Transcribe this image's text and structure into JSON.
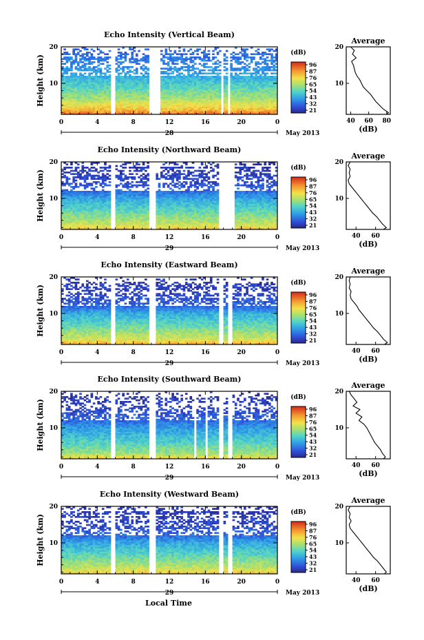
{
  "figure": {
    "xlabel": "Local Time",
    "date_label": "May 2013",
    "unit_label": "(dB)",
    "average_title": "Average",
    "average_xlabel": "(dB)",
    "height_label": "Height (km)"
  },
  "chart_data": [
    {
      "type": "heatmap",
      "title": "Echo Intensity (Vertical Beam)",
      "ylabel": "Height (km)",
      "xlim": [
        0,
        24
      ],
      "ylim": [
        1.5,
        20
      ],
      "x_ticks": [
        "0",
        "4",
        "8",
        "12",
        "16",
        "20",
        "0"
      ],
      "y_ticks": [
        "10",
        "20"
      ],
      "day": "28",
      "colorbar": {
        "ticks": [
          "96",
          "87",
          "76",
          "65",
          "54",
          "43",
          "32",
          "21"
        ],
        "range": [
          21,
          96
        ]
      },
      "gaps_hours": [
        [
          5.5,
          5.9
        ],
        [
          9.8,
          10.9
        ],
        [
          17.7,
          18.0
        ],
        [
          18.5,
          18.8
        ]
      ],
      "profile_by_height": [
        [
          1.5,
          88
        ],
        [
          3,
          76
        ],
        [
          6,
          62
        ],
        [
          10,
          50
        ],
        [
          14,
          40
        ],
        [
          17,
          36
        ],
        [
          20,
          32
        ]
      ],
      "average": {
        "xlim": [
          35,
          84
        ],
        "x_ticks": [
          "40",
          "60",
          "80"
        ],
        "y_ticks": [
          "10",
          "20"
        ],
        "profile": [
          [
            20,
            40
          ],
          [
            19,
            44
          ],
          [
            18,
            42
          ],
          [
            17,
            46
          ],
          [
            16,
            41
          ],
          [
            15,
            43
          ],
          [
            14,
            44
          ],
          [
            13,
            45
          ],
          [
            12,
            47
          ],
          [
            11,
            50
          ],
          [
            10,
            52
          ],
          [
            9,
            54
          ],
          [
            8,
            58
          ],
          [
            7,
            62
          ],
          [
            6,
            65
          ],
          [
            5,
            68
          ],
          [
            4,
            72
          ],
          [
            3,
            76
          ],
          [
            2,
            82
          ],
          [
            1.5,
            80
          ]
        ]
      }
    },
    {
      "type": "heatmap",
      "title": "Echo Intensity (Northward Beam)",
      "ylabel": "Height (km)",
      "xlim": [
        0,
        24
      ],
      "ylim": [
        1.5,
        20
      ],
      "x_ticks": [
        "0",
        "4",
        "8",
        "12",
        "16",
        "20",
        "0"
      ],
      "y_ticks": [
        "10",
        "20"
      ],
      "day": "29",
      "colorbar": {
        "ticks": [
          "96",
          "87",
          "76",
          "65",
          "54",
          "43",
          "32",
          "21"
        ],
        "range": [
          21,
          96
        ]
      },
      "gaps_hours": [
        [
          5.5,
          5.9
        ],
        [
          9.8,
          10.6
        ],
        [
          17.4,
          19.2
        ]
      ],
      "profile_by_height": [
        [
          1.5,
          78
        ],
        [
          3,
          66
        ],
        [
          6,
          56
        ],
        [
          10,
          44
        ],
        [
          12,
          34
        ],
        [
          15,
          28
        ],
        [
          20,
          24
        ]
      ],
      "average": {
        "xlim": [
          30,
          75
        ],
        "x_ticks": [
          "40",
          "60"
        ],
        "y_ticks": [
          "10",
          "20"
        ],
        "profile": [
          [
            20,
            34
          ],
          [
            19,
            32
          ],
          [
            18,
            34
          ],
          [
            17,
            33
          ],
          [
            16,
            34
          ],
          [
            15,
            32
          ],
          [
            14,
            33
          ],
          [
            13,
            36
          ],
          [
            12,
            39
          ],
          [
            11,
            42
          ],
          [
            10,
            45
          ],
          [
            9,
            48
          ],
          [
            8,
            51
          ],
          [
            7,
            54
          ],
          [
            6,
            57
          ],
          [
            5,
            61
          ],
          [
            4,
            64
          ],
          [
            3,
            67
          ],
          [
            2,
            71
          ],
          [
            1.5,
            68
          ]
        ]
      }
    },
    {
      "type": "heatmap",
      "title": "Echo Intensity (Eastward Beam)",
      "ylabel": "Height (km)",
      "xlim": [
        0,
        24
      ],
      "ylim": [
        1.5,
        20
      ],
      "x_ticks": [
        "0",
        "4",
        "8",
        "12",
        "16",
        "20",
        "0"
      ],
      "y_ticks": [
        "10",
        "20"
      ],
      "day": "29",
      "colorbar": {
        "ticks": [
          "96",
          "87",
          "76",
          "65",
          "54",
          "43",
          "32",
          "21"
        ],
        "range": [
          21,
          96
        ]
      },
      "gaps_hours": [
        [
          5.5,
          5.9
        ],
        [
          9.8,
          10.6
        ],
        [
          17.6,
          17.9
        ],
        [
          18.6,
          19.1
        ]
      ],
      "profile_by_height": [
        [
          1.5,
          80
        ],
        [
          3,
          68
        ],
        [
          6,
          57
        ],
        [
          10,
          45
        ],
        [
          12,
          34
        ],
        [
          15,
          28
        ],
        [
          20,
          24
        ]
      ],
      "average": {
        "xlim": [
          30,
          75
        ],
        "x_ticks": [
          "40",
          "60"
        ],
        "y_ticks": [
          "10",
          "20"
        ],
        "profile": [
          [
            20,
            34
          ],
          [
            19,
            33
          ],
          [
            18,
            34
          ],
          [
            17,
            33
          ],
          [
            16,
            35
          ],
          [
            15,
            34
          ],
          [
            14,
            35
          ],
          [
            13,
            38
          ],
          [
            12,
            41
          ],
          [
            11,
            43
          ],
          [
            10,
            46
          ],
          [
            9,
            49
          ],
          [
            8,
            52
          ],
          [
            7,
            55
          ],
          [
            6,
            58
          ],
          [
            5,
            62
          ],
          [
            4,
            65
          ],
          [
            3,
            68
          ],
          [
            2,
            72
          ],
          [
            1.5,
            69
          ]
        ]
      }
    },
    {
      "type": "heatmap",
      "title": "Echo Intensity (Southward Beam)",
      "ylabel": "Height (km)",
      "xlim": [
        0,
        24
      ],
      "ylim": [
        1.5,
        20
      ],
      "x_ticks": [
        "0",
        "4",
        "8",
        "12",
        "16",
        "20",
        "0"
      ],
      "y_ticks": [
        "10",
        "20"
      ],
      "day": "29",
      "colorbar": {
        "ticks": [
          "96",
          "87",
          "76",
          "65",
          "54",
          "43",
          "32",
          "21"
        ],
        "range": [
          21,
          96
        ]
      },
      "gaps_hours": [
        [
          5.5,
          5.9
        ],
        [
          9.8,
          10.6
        ],
        [
          14.8,
          15.1
        ],
        [
          15.9,
          16.2
        ],
        [
          17.6,
          17.9
        ],
        [
          18.6,
          18.9
        ]
      ],
      "profile_by_height": [
        [
          1.5,
          74
        ],
        [
          3,
          62
        ],
        [
          6,
          52
        ],
        [
          10,
          42
        ],
        [
          12,
          34
        ],
        [
          15,
          28
        ],
        [
          20,
          24
        ]
      ],
      "average": {
        "xlim": [
          30,
          75
        ],
        "x_ticks": [
          "40",
          "60"
        ],
        "y_ticks": [
          "10",
          "20"
        ],
        "profile": [
          [
            20,
            33
          ],
          [
            19,
            35
          ],
          [
            18,
            38
          ],
          [
            17,
            41
          ],
          [
            16,
            37
          ],
          [
            15,
            44
          ],
          [
            14,
            40
          ],
          [
            13,
            46
          ],
          [
            12,
            43
          ],
          [
            11,
            48
          ],
          [
            10,
            51
          ],
          [
            9,
            53
          ],
          [
            8,
            55
          ],
          [
            7,
            57
          ],
          [
            6,
            59
          ],
          [
            5,
            62
          ],
          [
            4,
            65
          ],
          [
            3,
            67
          ],
          [
            2,
            70
          ],
          [
            1.5,
            68
          ]
        ]
      }
    },
    {
      "type": "heatmap",
      "title": "Echo Intensity (Westward Beam)",
      "ylabel": "Height (km)",
      "xlim": [
        0,
        24
      ],
      "ylim": [
        1.5,
        20
      ],
      "x_ticks": [
        "0",
        "4",
        "8",
        "12",
        "16",
        "20",
        "0"
      ],
      "y_ticks": [
        "10",
        "20"
      ],
      "day": "29",
      "colorbar": {
        "ticks": [
          "96",
          "87",
          "76",
          "65",
          "54",
          "43",
          "32",
          "21"
        ],
        "range": [
          21,
          96
        ]
      },
      "gaps_hours": [
        [
          5.5,
          5.9
        ],
        [
          9.8,
          10.6
        ],
        [
          17.6,
          17.9
        ],
        [
          18.6,
          19.1
        ]
      ],
      "profile_by_height": [
        [
          1.5,
          78
        ],
        [
          3,
          66
        ],
        [
          6,
          56
        ],
        [
          10,
          44
        ],
        [
          12,
          34
        ],
        [
          15,
          28
        ],
        [
          20,
          24
        ]
      ],
      "average": {
        "xlim": [
          30,
          75
        ],
        "x_ticks": [
          "40",
          "60"
        ],
        "y_ticks": [
          "10",
          "20"
        ],
        "profile": [
          [
            20,
            34
          ],
          [
            19,
            32
          ],
          [
            18,
            34
          ],
          [
            17,
            33
          ],
          [
            16,
            35
          ],
          [
            15,
            33
          ],
          [
            14,
            34
          ],
          [
            13,
            37
          ],
          [
            12,
            40
          ],
          [
            11,
            43
          ],
          [
            10,
            46
          ],
          [
            9,
            49
          ],
          [
            8,
            52
          ],
          [
            7,
            55
          ],
          [
            6,
            58
          ],
          [
            5,
            62
          ],
          [
            4,
            65
          ],
          [
            3,
            68
          ],
          [
            2,
            71
          ],
          [
            1.5,
            69
          ]
        ]
      }
    }
  ]
}
